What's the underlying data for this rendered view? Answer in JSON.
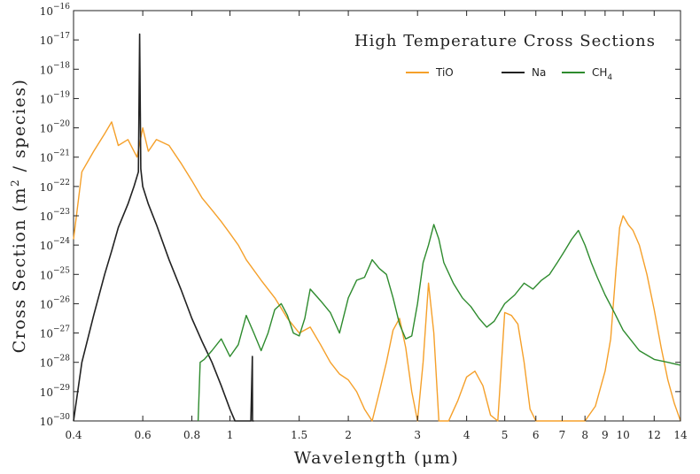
{
  "chart_data": {
    "type": "line",
    "title": "High Temperature Cross Sections",
    "xlabel": "Wavelength (μm)",
    "ylabel_main": "Cross Section (m",
    "ylabel_sup": "2",
    "ylabel_tail": " / species)",
    "x_scale": "log",
    "y_scale": "log",
    "xlim": [
      0.4,
      14
    ],
    "ylim_exp": [
      -30,
      -16
    ],
    "grid": false,
    "legend_position": "top-right",
    "x_ticks": [
      {
        "value": 0.4,
        "label": "0.4"
      },
      {
        "value": 0.6,
        "label": "0.6"
      },
      {
        "value": 0.8,
        "label": "0.8"
      },
      {
        "value": 1,
        "label": "1"
      },
      {
        "value": 1.5,
        "label": "1.5"
      },
      {
        "value": 2,
        "label": "2"
      },
      {
        "value": 3,
        "label": "3"
      },
      {
        "value": 4,
        "label": "4"
      },
      {
        "value": 5,
        "label": "5"
      },
      {
        "value": 6,
        "label": "6"
      },
      {
        "value": 7,
        "label": "7"
      },
      {
        "value": 8,
        "label": "8"
      },
      {
        "value": 9,
        "label": "9"
      },
      {
        "value": 10,
        "label": "10"
      },
      {
        "value": 12,
        "label": "12"
      },
      {
        "value": 14,
        "label": "14"
      }
    ],
    "y_ticks": [
      {
        "exp": -16,
        "base": "10",
        "sup": "−16"
      },
      {
        "exp": -17,
        "base": "10",
        "sup": "−17"
      },
      {
        "exp": -18,
        "base": "10",
        "sup": "−18"
      },
      {
        "exp": -19,
        "base": "10",
        "sup": "−19"
      },
      {
        "exp": -20,
        "base": "10",
        "sup": "−20"
      },
      {
        "exp": -21,
        "base": "10",
        "sup": "−21"
      },
      {
        "exp": -22,
        "base": "10",
        "sup": "−22"
      },
      {
        "exp": -23,
        "base": "10",
        "sup": "−23"
      },
      {
        "exp": -24,
        "base": "10",
        "sup": "−24"
      },
      {
        "exp": -25,
        "base": "10",
        "sup": "−25"
      },
      {
        "exp": -26,
        "base": "10",
        "sup": "−26"
      },
      {
        "exp": -27,
        "base": "10",
        "sup": "−27"
      },
      {
        "exp": -28,
        "base": "10",
        "sup": "−28"
      },
      {
        "exp": -29,
        "base": "10",
        "sup": "−29"
      },
      {
        "exp": -30,
        "base": "10",
        "sup": "−30"
      }
    ],
    "series": [
      {
        "name": "TiO",
        "color": "#f5a02a",
        "x": [
          0.4,
          0.42,
          0.45,
          0.48,
          0.5,
          0.52,
          0.55,
          0.58,
          0.6,
          0.62,
          0.65,
          0.7,
          0.75,
          0.8,
          0.85,
          0.9,
          0.95,
          1.0,
          1.05,
          1.1,
          1.2,
          1.3,
          1.4,
          1.5,
          1.6,
          1.7,
          1.8,
          1.9,
          2.0,
          2.1,
          2.2,
          2.3,
          2.4,
          2.5,
          2.6,
          2.7,
          2.8,
          2.9,
          3.0,
          3.1,
          3.2,
          3.3,
          3.4,
          3.6,
          3.8,
          4.0,
          4.2,
          4.4,
          4.6,
          4.8,
          5.0,
          5.2,
          5.4,
          5.6,
          5.8,
          6.0,
          6.5,
          7.0,
          7.5,
          8.0,
          8.5,
          9.0,
          9.3,
          9.6,
          9.8,
          10.0,
          10.3,
          10.6,
          11.0,
          11.5,
          12.0,
          12.5,
          13.0,
          13.5,
          14.0
        ],
        "y_exp": [
          -23.8,
          -21.5,
          -20.8,
          -20.2,
          -19.8,
          -20.6,
          -20.4,
          -21.0,
          -20.0,
          -20.8,
          -20.4,
          -20.6,
          -21.2,
          -21.8,
          -22.4,
          -22.8,
          -23.2,
          -23.6,
          -24.0,
          -24.5,
          -25.2,
          -25.8,
          -26.5,
          -27.0,
          -26.8,
          -27.4,
          -28.0,
          -28.4,
          -28.6,
          -29.0,
          -29.6,
          -30.0,
          -29.0,
          -28.0,
          -26.9,
          -26.5,
          -27.5,
          -29.0,
          -30.0,
          -28.0,
          -25.3,
          -27.0,
          -30.0,
          -30.0,
          -29.3,
          -28.5,
          -28.3,
          -28.8,
          -29.8,
          -30.0,
          -26.3,
          -26.4,
          -26.7,
          -28.0,
          -29.6,
          -30.0,
          -30.0,
          -30.0,
          -30.0,
          -30.0,
          -29.5,
          -28.3,
          -27.2,
          -24.8,
          -23.4,
          -23.0,
          -23.3,
          -23.5,
          -24.0,
          -25.0,
          -26.2,
          -27.5,
          -28.6,
          -29.4,
          -30.0
        ]
      },
      {
        "name": "Na",
        "color": "#222222",
        "x": [
          0.4,
          0.42,
          0.45,
          0.48,
          0.5,
          0.52,
          0.55,
          0.57,
          0.585,
          0.589,
          0.593,
          0.6,
          0.62,
          0.65,
          0.7,
          0.75,
          0.8,
          0.85,
          0.9,
          0.95,
          1.0,
          1.03,
          1.08,
          1.1,
          1.13,
          1.14,
          1.141,
          1.15
        ],
        "y_exp": [
          -30.0,
          -28.0,
          -26.4,
          -25.0,
          -24.2,
          -23.4,
          -22.6,
          -22.0,
          -21.5,
          -16.8,
          -21.4,
          -22.0,
          -22.6,
          -23.3,
          -24.5,
          -25.5,
          -26.5,
          -27.3,
          -28.0,
          -28.8,
          -29.6,
          -30.0,
          -30.0,
          -30.0,
          -30.0,
          -27.8,
          -30.0,
          -30.0
        ]
      },
      {
        "name": "CH",
        "name_sub": "4",
        "color": "#2e8b2e",
        "x": [
          0.83,
          0.84,
          0.86,
          0.9,
          0.95,
          1.0,
          1.05,
          1.1,
          1.15,
          1.2,
          1.25,
          1.3,
          1.35,
          1.4,
          1.45,
          1.5,
          1.55,
          1.6,
          1.7,
          1.8,
          1.9,
          2.0,
          2.1,
          2.2,
          2.3,
          2.4,
          2.5,
          2.6,
          2.7,
          2.8,
          2.9,
          3.0,
          3.1,
          3.2,
          3.3,
          3.4,
          3.5,
          3.7,
          3.9,
          4.1,
          4.3,
          4.5,
          4.7,
          5.0,
          5.3,
          5.6,
          5.9,
          6.2,
          6.5,
          6.8,
          7.1,
          7.4,
          7.7,
          8.0,
          8.3,
          8.6,
          9.0,
          9.5,
          10.0,
          11.0,
          12.0,
          13.0,
          14.0
        ],
        "y_exp": [
          -30.0,
          -28.0,
          -27.9,
          -27.6,
          -27.2,
          -27.8,
          -27.4,
          -26.4,
          -27.0,
          -27.6,
          -27.0,
          -26.2,
          -26.0,
          -26.4,
          -27.0,
          -27.1,
          -26.5,
          -25.5,
          -25.9,
          -26.3,
          -27.0,
          -25.8,
          -25.2,
          -25.1,
          -24.5,
          -24.8,
          -25.0,
          -25.8,
          -26.7,
          -27.2,
          -27.1,
          -26.0,
          -24.6,
          -24.0,
          -23.3,
          -23.8,
          -24.6,
          -25.3,
          -25.8,
          -26.1,
          -26.5,
          -26.8,
          -26.6,
          -26.0,
          -25.7,
          -25.3,
          -25.5,
          -25.2,
          -25.0,
          -24.6,
          -24.2,
          -23.8,
          -23.5,
          -24.0,
          -24.6,
          -25.1,
          -25.7,
          -26.3,
          -26.9,
          -27.6,
          -27.9,
          -28.0,
          -28.1
        ]
      }
    ]
  }
}
